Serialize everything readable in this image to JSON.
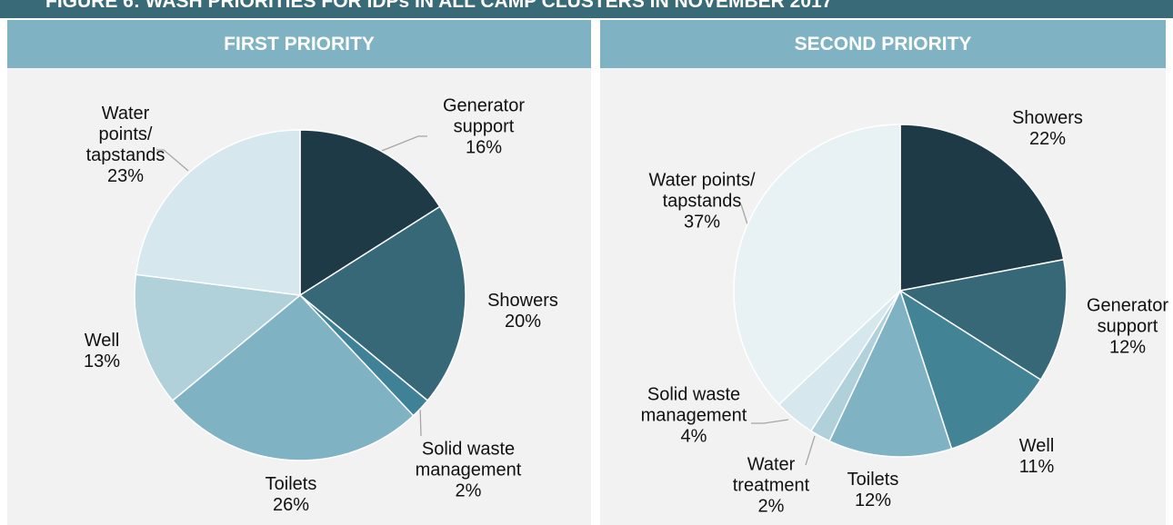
{
  "header": {
    "title": "FIGURE 6: WASH PRIORITIES FOR IDPs IN ALL CAMP CLUSTERS IN NOVEMBER 2017"
  },
  "chart_data": [
    {
      "type": "pie",
      "title": "FIRST PRIORITY",
      "categories": [
        "Generator support",
        "Showers",
        "Solid waste management",
        "Toilets",
        "Well",
        "Water points/ tapstands"
      ],
      "values": [
        16,
        20,
        2,
        26,
        13,
        23
      ],
      "value_labels": [
        "16%",
        "20%",
        "2%",
        "26%",
        "13%",
        "23%"
      ],
      "colors": [
        "#1e3a46",
        "#376878",
        "#3f8196",
        "#7fb3c3",
        "#b0d1da",
        "#d6e8ee"
      ]
    },
    {
      "type": "pie",
      "title": "SECOND PRIORITY",
      "categories": [
        "Showers",
        "Generator support",
        "Well",
        "Toilets",
        "Water treatment",
        "Solid waste management",
        "Water points/ tapstands"
      ],
      "values": [
        22,
        12,
        11,
        12,
        2,
        4,
        37
      ],
      "value_labels": [
        "22%",
        "12%",
        "11%",
        "12%",
        "2%",
        "4%",
        "37%"
      ],
      "colors": [
        "#1e3a46",
        "#376878",
        "#428496",
        "#7fb3c3",
        "#b0d1da",
        "#d6e8ee",
        "#e8f1f4"
      ]
    }
  ]
}
